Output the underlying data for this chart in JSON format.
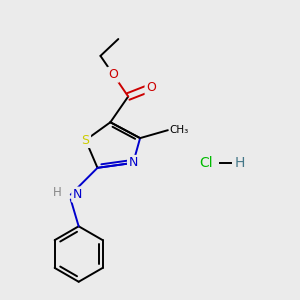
{
  "background_color": "#ebebeb",
  "figure_size": [
    3.0,
    3.0
  ],
  "dpi": 100,
  "atom_colors": {
    "S": "#cccc00",
    "N": "#0000cc",
    "O": "#cc0000",
    "C": "#000000",
    "H": "#888888",
    "Cl": "#00bb00"
  },
  "hcl_color_cl": "#00bb00",
  "hcl_color_h": "#447788"
}
